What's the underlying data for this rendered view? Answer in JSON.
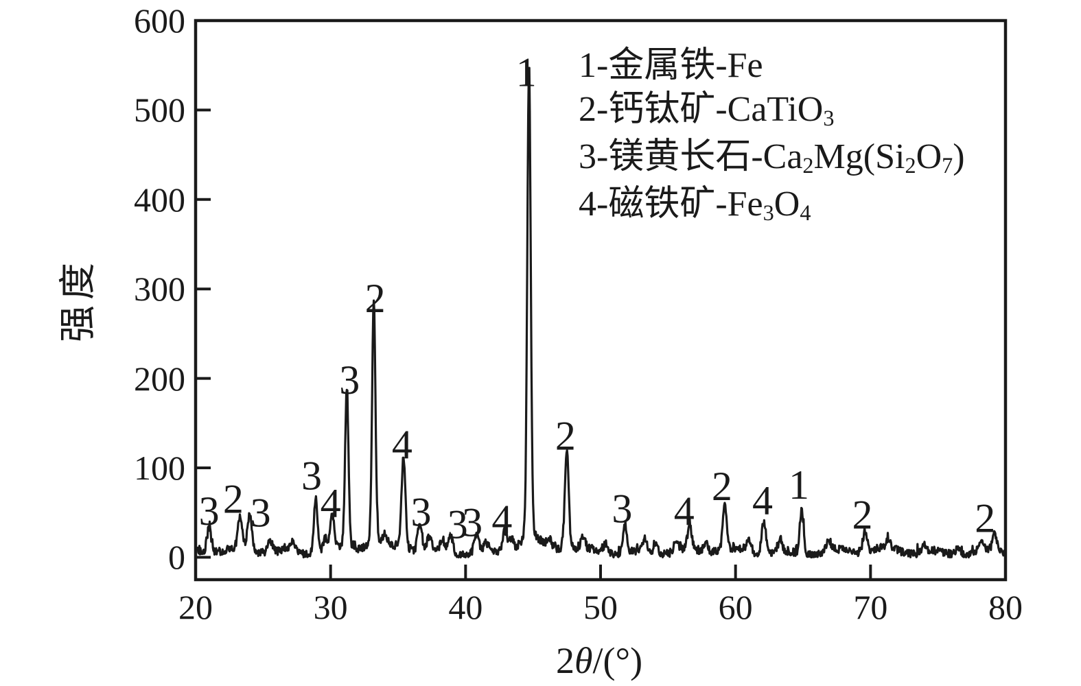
{
  "figure": {
    "background": "#ffffff",
    "ink_color": "#1a1a1a"
  },
  "chart_data": {
    "type": "line",
    "chart_kind": "xrd-diffraction-pattern",
    "title": "",
    "ylabel": "强度",
    "xlabel_segments": [
      {
        "t": "2"
      },
      {
        "t": "θ",
        "italic": true
      },
      {
        "t": "/(°)"
      }
    ],
    "xlim": [
      20,
      80
    ],
    "ylim": [
      -25,
      600
    ],
    "x_ticks": [
      "20",
      "30",
      "40",
      "50",
      "60",
      "70",
      "80"
    ],
    "y_ticks": [
      "0",
      "100",
      "200",
      "300",
      "400",
      "500",
      "600"
    ],
    "grid": false,
    "legend_position": "top-right-inside",
    "legend": [
      {
        "marker": "1",
        "segments": [
          {
            "t": "1-金属铁-Fe"
          }
        ]
      },
      {
        "marker": "2",
        "segments": [
          {
            "t": "2-钙钛矿-CaTiO"
          },
          {
            "t": "3",
            "sub": true
          }
        ]
      },
      {
        "marker": "3",
        "segments": [
          {
            "t": "3-镁黄长石-Ca"
          },
          {
            "t": "2",
            "sub": true
          },
          {
            "t": "Mg(Si"
          },
          {
            "t": "2",
            "sub": true
          },
          {
            "t": "O"
          },
          {
            "t": "7",
            "sub": true
          },
          {
            "t": ")"
          }
        ]
      },
      {
        "marker": "4",
        "segments": [
          {
            "t": "4-磁铁矿-Fe"
          },
          {
            "t": "3",
            "sub": true
          },
          {
            "t": "O"
          },
          {
            "t": "4",
            "sub": true
          }
        ]
      }
    ],
    "labeled_peaks": [
      {
        "two_theta": 21.0,
        "intensity": 27,
        "phase": "3"
      },
      {
        "two_theta": 23.3,
        "intensity": 36,
        "phase": "2"
      },
      {
        "two_theta": 24.0,
        "intensity": 39,
        "phase": "3"
      },
      {
        "two_theta": 28.9,
        "intensity": 62,
        "phase": "3"
      },
      {
        "two_theta": 30.1,
        "intensity": 42,
        "phase": "4"
      },
      {
        "two_theta": 31.2,
        "intensity": 172,
        "phase": "3"
      },
      {
        "two_theta": 33.2,
        "intensity": 262,
        "phase": "2"
      },
      {
        "two_theta": 35.4,
        "intensity": 100,
        "phase": "4"
      },
      {
        "two_theta": 36.6,
        "intensity": 29,
        "phase": "3"
      },
      {
        "two_theta": 38.9,
        "intensity": 20,
        "phase": "3"
      },
      {
        "two_theta": 40.8,
        "intensity": 22,
        "phase": "3"
      },
      {
        "two_theta": 42.9,
        "intensity": 24,
        "phase": "4"
      },
      {
        "two_theta": 44.7,
        "intensity": 516,
        "phase": "1"
      },
      {
        "two_theta": 47.5,
        "intensity": 108,
        "phase": "2"
      },
      {
        "two_theta": 51.8,
        "intensity": 30,
        "phase": "3"
      },
      {
        "two_theta": 56.6,
        "intensity": 24,
        "phase": "4"
      },
      {
        "two_theta": 59.2,
        "intensity": 50,
        "phase": "2"
      },
      {
        "two_theta": 62.1,
        "intensity": 36,
        "phase": "4"
      },
      {
        "two_theta": 64.9,
        "intensity": 50,
        "phase": "1"
      },
      {
        "two_theta": 69.6,
        "intensity": 23,
        "phase": "2"
      },
      {
        "two_theta": 79.2,
        "intensity": 19,
        "phase": "2"
      }
    ],
    "minor_peaks": [
      {
        "two_theta": 25.5,
        "intensity": 15
      },
      {
        "two_theta": 27.2,
        "intensity": 10
      },
      {
        "two_theta": 29.6,
        "intensity": 16
      },
      {
        "two_theta": 34.0,
        "intensity": 10
      },
      {
        "two_theta": 37.3,
        "intensity": 14
      },
      {
        "two_theta": 38.3,
        "intensity": 12
      },
      {
        "two_theta": 41.5,
        "intensity": 10
      },
      {
        "two_theta": 43.4,
        "intensity": 14
      },
      {
        "two_theta": 46.2,
        "intensity": 10
      },
      {
        "two_theta": 48.7,
        "intensity": 12
      },
      {
        "two_theta": 50.4,
        "intensity": 12
      },
      {
        "two_theta": 53.3,
        "intensity": 16
      },
      {
        "two_theta": 54.1,
        "intensity": 12
      },
      {
        "two_theta": 55.6,
        "intensity": 10
      },
      {
        "two_theta": 57.8,
        "intensity": 10
      },
      {
        "two_theta": 61.0,
        "intensity": 12
      },
      {
        "two_theta": 63.3,
        "intensity": 12
      },
      {
        "two_theta": 66.9,
        "intensity": 13
      },
      {
        "two_theta": 71.3,
        "intensity": 10
      },
      {
        "two_theta": 74.0,
        "intensity": 8
      },
      {
        "two_theta": 76.5,
        "intensity": 8
      },
      {
        "two_theta": 78.2,
        "intensity": 9
      }
    ],
    "baseline_noise_range": [
      0,
      15
    ]
  }
}
